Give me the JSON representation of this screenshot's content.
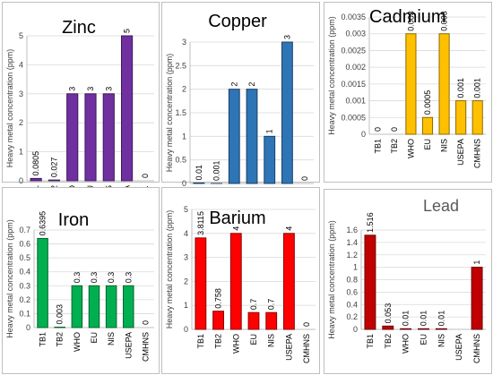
{
  "chart_data": [
    {
      "type": "bar",
      "title": "Zinc",
      "ylabel": "Heavy metal concentration (ppm)",
      "categories": [
        "TB1",
        "TB2",
        "WHO",
        "EU",
        "NIS",
        "USEPA",
        "CMH…"
      ],
      "values": [
        0.0805,
        0.027,
        3,
        3,
        3,
        5,
        0
      ],
      "data_labels": [
        "0.0805",
        "0.027",
        "3",
        "3",
        "3",
        "5",
        "0"
      ],
      "ylim": [
        0,
        5
      ],
      "yticks": [
        "0",
        "1",
        "2",
        "3",
        "4",
        "5"
      ],
      "color": "#7030A0",
      "grid": true
    },
    {
      "type": "bar",
      "title": "Copper",
      "ylabel": "Heavy metal concentration (ppm)",
      "categories": [
        "TB1",
        "TB2",
        "WHO",
        "EU",
        "NIS",
        "USEPA",
        "CMHNS"
      ],
      "values": [
        0.01,
        0.001,
        2,
        2,
        1,
        3,
        0
      ],
      "data_labels": [
        "0.01",
        "0.001",
        "2",
        "2",
        "1",
        "3",
        "0"
      ],
      "ylim": [
        0,
        3
      ],
      "yticks": [
        "0",
        "0.5",
        "1",
        "1.5",
        "2",
        "2.5",
        "3"
      ],
      "color": "#2E75B6",
      "grid": true
    },
    {
      "type": "bar",
      "title": "Cadmium",
      "ylabel": "Heavy metal concentration (ppm)",
      "categories": [
        "TB1",
        "TB2",
        "WHO",
        "EU",
        "NIS",
        "USEPA",
        "CMHNS"
      ],
      "values": [
        0,
        0,
        0.003,
        0.0005,
        0.003,
        0.001,
        0.001
      ],
      "data_labels": [
        "0",
        "0",
        "0.003",
        "0.0005",
        "0.003",
        "0.001",
        "0.001"
      ],
      "ylim": [
        0,
        0.0035
      ],
      "yticks": [
        "0",
        "0.0005",
        "0.001",
        "0.0015",
        "0.002",
        "0.0025",
        "0.003",
        "0.0035"
      ],
      "color": "#FFC000",
      "grid": true
    },
    {
      "type": "bar",
      "title": "Iron",
      "ylabel": "Heavy metal concentration (ppm)",
      "categories": [
        "TB1",
        "TB2",
        "WHO",
        "EU",
        "NIS",
        "USEPA",
        "CMHNS"
      ],
      "values": [
        0.6395,
        0.003,
        0.3,
        0.3,
        0.3,
        0.3,
        0
      ],
      "data_labels": [
        "0.6395",
        "0.003",
        "0.3",
        "0.3",
        "0.3",
        "0.3",
        "0"
      ],
      "ylim": [
        0,
        0.7
      ],
      "yticks": [
        "0",
        "0.1",
        "0.2",
        "0.3",
        "0.4",
        "0.5",
        "0.6",
        "0.7"
      ],
      "color": "#00B050",
      "grid": true
    },
    {
      "type": "bar",
      "title": "Barium",
      "ylabel": "Heavy metal concentration (ppm)",
      "categories": [
        "TB1",
        "TB2",
        "WHO",
        "EU",
        "NIS",
        "USEPA",
        "CMHNS"
      ],
      "values": [
        3.8115,
        0.758,
        4,
        0.7,
        0.7,
        4,
        0
      ],
      "data_labels": [
        "3.8115",
        "0.758",
        "4",
        "0.7",
        "0.7",
        "4",
        "0"
      ],
      "ylim": [
        0,
        5
      ],
      "yticks": [
        "0",
        "1",
        "2",
        "3",
        "4",
        "5"
      ],
      "color": "#FF0000",
      "grid": true
    },
    {
      "type": "bar",
      "title": "Lead",
      "ylabel": "Heavy metal concentration (ppm)",
      "categories": [
        "TB1",
        "TB2",
        "WHO",
        "EU",
        "NIS",
        "USEPA",
        "CMHNS"
      ],
      "values": [
        1.516,
        0.053,
        0.01,
        0.01,
        0.01,
        0,
        1
      ],
      "data_labels": [
        "1.516",
        "0.053",
        "0.01",
        "0.01",
        "0.01",
        "",
        "1"
      ],
      "ylim": [
        0,
        1.6
      ],
      "yticks": [
        "0",
        "0.2",
        "0.4",
        "0.6",
        "0.8",
        "1",
        "1.2",
        "1.4",
        "1.6"
      ],
      "color": "#C00000",
      "grid": true
    }
  ]
}
